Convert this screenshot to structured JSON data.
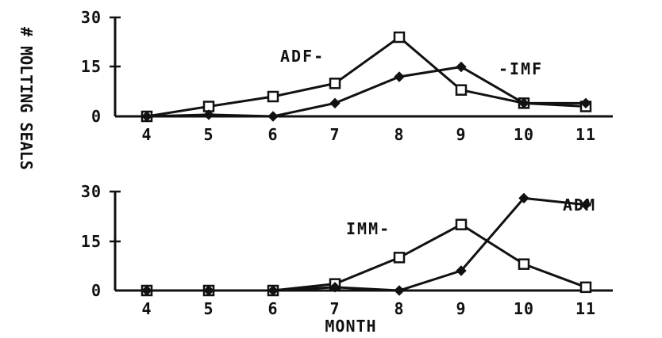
{
  "chart_data": [
    {
      "type": "line",
      "ylabel": "# MOLTING SEALS",
      "xlabel": "",
      "x": [
        4,
        5,
        6,
        7,
        8,
        9,
        10,
        11
      ],
      "x_tick_labels": [
        "4",
        "5",
        "6",
        "7",
        "8",
        "9",
        "10",
        "11"
      ],
      "y_tick_labels": [
        "0",
        "15",
        "30"
      ],
      "ylim": [
        0,
        30
      ],
      "series": [
        {
          "name": "ADF-",
          "marker": "square",
          "values": [
            0,
            3,
            6,
            10,
            24,
            8,
            4,
            3
          ]
        },
        {
          "name": "-IMF",
          "marker": "diamond",
          "values": [
            0,
            0.5,
            0,
            4,
            12,
            15,
            4,
            4
          ]
        }
      ]
    },
    {
      "type": "line",
      "ylabel": "# MOLTING SEALS",
      "xlabel": "MONTH",
      "x": [
        4,
        5,
        6,
        7,
        8,
        9,
        10,
        11
      ],
      "x_tick_labels": [
        "4",
        "5",
        "6",
        "7",
        "8",
        "9",
        "10",
        "11"
      ],
      "y_tick_labels": [
        "0",
        "15",
        "30"
      ],
      "ylim": [
        0,
        30
      ],
      "series": [
        {
          "name": "IMM-",
          "marker": "square",
          "values": [
            0,
            0,
            0,
            2,
            10,
            20,
            8,
            1
          ]
        },
        {
          "name": "ADM",
          "marker": "diamond",
          "values": [
            0,
            0,
            0,
            1,
            0,
            6,
            28,
            26
          ]
        }
      ]
    }
  ],
  "colors": {
    "ink": "#111111",
    "background": "#ffffff"
  }
}
